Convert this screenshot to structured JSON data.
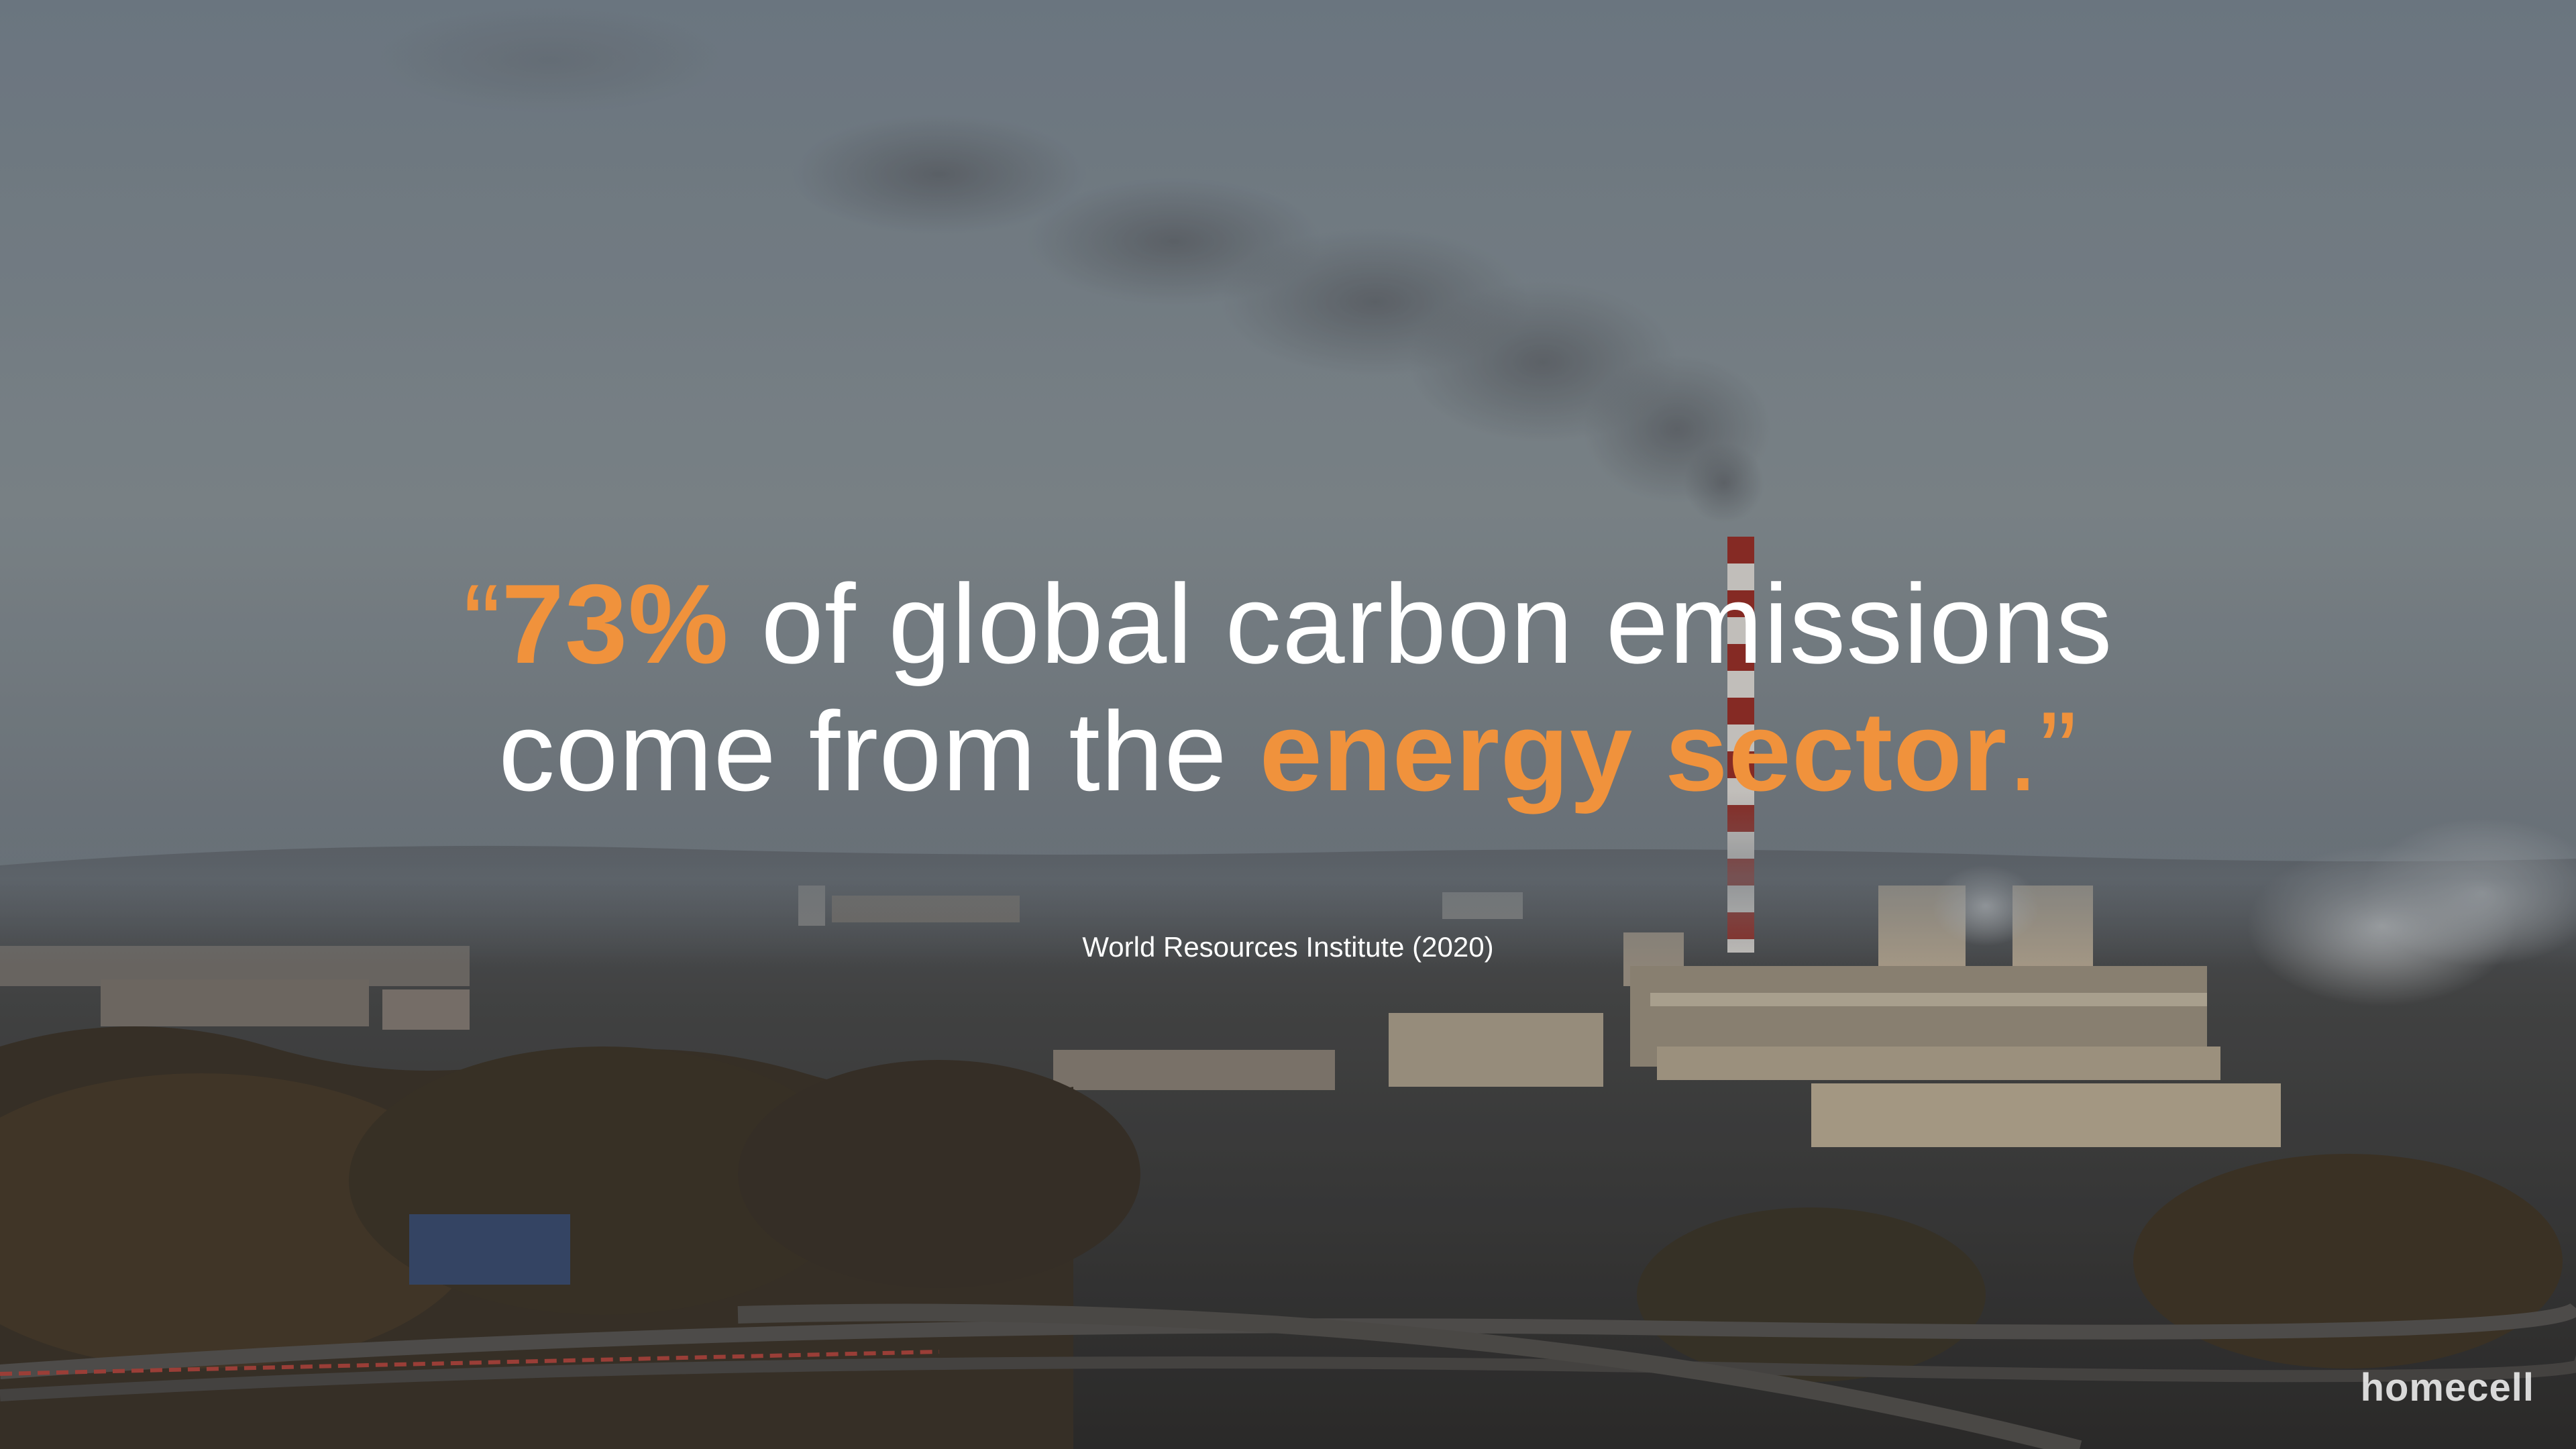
{
  "quote": {
    "open_mark": "“",
    "highlight_1": "73%",
    "line1_rest": " of global carbon emissions",
    "line2_start": "come from the ",
    "highlight_2": "energy sector",
    "close": ".”"
  },
  "source": "World Resources Institute (2020)",
  "brand": {
    "name": "homecell"
  },
  "colors": {
    "accent": "#f0923c",
    "text": "#ffffff"
  }
}
